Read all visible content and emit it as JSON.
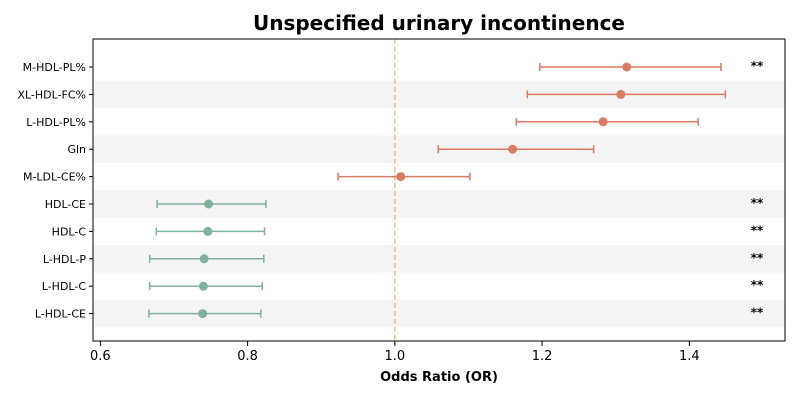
{
  "chart_data": {
    "type": "forest",
    "title": "Unspecified urinary incontinence",
    "xlabel": "Odds Ratio (OR)",
    "xlim": [
      0.59,
      1.53
    ],
    "xticks": [
      0.6,
      0.8,
      1.0,
      1.2,
      1.4
    ],
    "xtick_labels": [
      "0.6",
      "0.8",
      "1.0",
      "1.2",
      "1.4"
    ],
    "reference_line": 1.0,
    "colors": {
      "positive": "#d97b62",
      "negative": "#7fb29a",
      "reference": "#f4c27f",
      "band": "#f4f4f4"
    },
    "rows": [
      {
        "label": "M-HDL-PL%",
        "or": 1.315,
        "lo": 1.197,
        "hi": 1.443,
        "sig": "**",
        "band": false
      },
      {
        "label": "XL-HDL-FC%",
        "or": 1.307,
        "lo": 1.18,
        "hi": 1.449,
        "sig": "",
        "band": true
      },
      {
        "label": "L-HDL-PL%",
        "or": 1.283,
        "lo": 1.165,
        "hi": 1.412,
        "sig": "",
        "band": false
      },
      {
        "label": "Gln",
        "or": 1.16,
        "lo": 1.059,
        "hi": 1.27,
        "sig": "",
        "band": true
      },
      {
        "label": "M-LDL-CE%",
        "or": 1.008,
        "lo": 0.923,
        "hi": 1.102,
        "sig": "",
        "band": false
      },
      {
        "label": "HDL-CE",
        "or": 0.747,
        "lo": 0.677,
        "hi": 0.825,
        "sig": "**",
        "band": true
      },
      {
        "label": "HDL-C",
        "or": 0.746,
        "lo": 0.676,
        "hi": 0.823,
        "sig": "**",
        "band": false
      },
      {
        "label": "L-HDL-P",
        "or": 0.741,
        "lo": 0.667,
        "hi": 0.822,
        "sig": "**",
        "band": true
      },
      {
        "label": "L-HDL-C",
        "or": 0.74,
        "lo": 0.667,
        "hi": 0.82,
        "sig": "**",
        "band": false
      },
      {
        "label": "L-HDL-CE",
        "or": 0.739,
        "lo": 0.666,
        "hi": 0.818,
        "sig": "**",
        "band": true
      }
    ]
  }
}
